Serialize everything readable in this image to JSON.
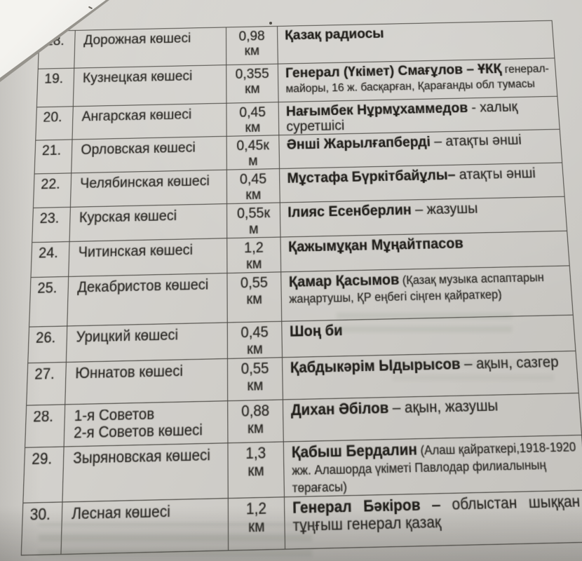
{
  "colors": {
    "paper": "#d6d4cf",
    "ink": "#2a2824",
    "bold_ink": "#1f1d19",
    "table_border": "#4c4a45",
    "corner_white": "#f4f3ef",
    "bleed_tint": "#6c7a66"
  },
  "table": {
    "rows": [
      {
        "num": "18.",
        "street": "Дорожная көшесі",
        "distance": [
          "0,98",
          "км"
        ],
        "desc": [
          {
            "text": "Қазақ радиосы",
            "style": "bold"
          }
        ]
      },
      {
        "num": "19.",
        "street": "Кузнецкая көшесі",
        "distance": [
          "0,355",
          "км"
        ],
        "desc": [
          {
            "text": "Генерал (Үкімет) Смағұлов – ҰКҚ",
            "style": "bold"
          },
          {
            "text": "генерал-майоры, 16 ж. басқарған, Қарағанды обл тумасы",
            "style": "small"
          }
        ]
      },
      {
        "num": "20.",
        "street": "Ангарская көшесі",
        "distance": [
          "0,45",
          "км"
        ],
        "desc": [
          {
            "text": "Нағымбек Нұрмұхаммедов",
            "style": "bold"
          },
          {
            "text": "- халық суретшісі",
            "style": "regular"
          }
        ]
      },
      {
        "num": "21.",
        "street": "Орловская көшесі",
        "distance": [
          "0,45к",
          "м"
        ],
        "desc": [
          {
            "text": "Әнші Жарылғапберді",
            "style": "bold"
          },
          {
            "text": "– атақты әнші",
            "style": "regular"
          }
        ]
      },
      {
        "num": "22.",
        "street": "Челябинская көшесі",
        "distance": [
          "0,45",
          "км"
        ],
        "desc": [
          {
            "text": "Мұстафа Бүркітбайұлы–",
            "style": "bold"
          },
          {
            "text": "атақты әнші",
            "style": "regular"
          }
        ]
      },
      {
        "num": "23.",
        "street": "Курская көшесі",
        "distance": [
          "0,55к",
          "м"
        ],
        "desc": [
          {
            "text": "Ілияс Есенберлин",
            "style": "bold"
          },
          {
            "text": "– жазушы",
            "style": "regular"
          }
        ]
      },
      {
        "num": "24.",
        "street": "Читинская көшесі",
        "distance": [
          "1,2",
          "км"
        ],
        "desc": [
          {
            "text": "Қажымұқан Мұңайтпасов",
            "style": "bold"
          }
        ]
      },
      {
        "num": "25.",
        "street": "Декабристов көшесі",
        "distance": [
          "0,55",
          "км"
        ],
        "desc": [
          {
            "text": "Қамар Қасымов",
            "style": "bold"
          },
          {
            "text": "(Қазақ музыка аспаптарын жаңартушы, ҚР еңбегі сіңген қайраткер)",
            "style": "small"
          }
        ]
      },
      {
        "num": "26.",
        "street": "Урицкий көшесі",
        "distance": [
          "0,45",
          "км"
        ],
        "desc": [
          {
            "text": "Шоң би",
            "style": "bold"
          }
        ]
      },
      {
        "num": "27.",
        "street": "Юннатов көшесі",
        "distance": [
          "0,55",
          "км"
        ],
        "desc": [
          {
            "text": "Қабдыкәрім Ыдырысов",
            "style": "bold"
          },
          {
            "text": "– ақын, сазгер",
            "style": "regular"
          }
        ]
      },
      {
        "num": "28.",
        "street": "1-я Советов\n2-я Советов көшесі",
        "distance": [
          "0,88",
          "км"
        ],
        "desc": [
          {
            "text": "Дихан Әбілов",
            "style": "bold"
          },
          {
            "text": "– ақын, жазушы",
            "style": "regular"
          }
        ]
      },
      {
        "num": "29.",
        "street": "Зыряновская көшесі",
        "distance": [
          "1,3",
          "км"
        ],
        "desc": [
          {
            "text": "Қабыш Бердалин",
            "style": "bold"
          },
          {
            "text": "(Алаш қайраткері,1918-1920 жж. Алашорда үкіметі Павлодар филиалының төрағасы)",
            "style": "small"
          }
        ]
      },
      {
        "num": "30.",
        "street": "Лесная көшесі",
        "distance": [
          "1,2",
          "км"
        ],
        "desc": [
          {
            "text": "Генерал Бәкіров",
            "style": "bold"
          },
          {
            "text": "– облыстан шыққан тұңғыш генерал қазақ",
            "style": "regular"
          }
        ]
      }
    ]
  }
}
